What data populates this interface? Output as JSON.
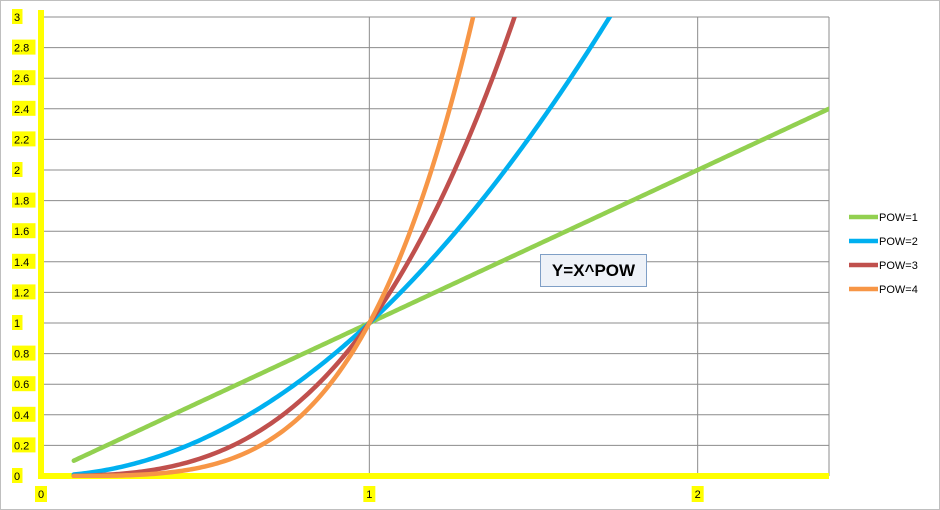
{
  "chart_data": {
    "type": "line",
    "title": "",
    "xlabel": "",
    "ylabel": "",
    "xlim": [
      0,
      2.4
    ],
    "ylim": [
      0,
      3
    ],
    "x_ticks": [
      "0",
      "1",
      "2"
    ],
    "y_ticks": [
      "0",
      "0.2",
      "0.4",
      "0.6",
      "0.8",
      "1",
      "1.2",
      "1.4",
      "1.6",
      "1.8",
      "2",
      "2.2",
      "2.4",
      "2.6",
      "2.8",
      "3"
    ],
    "x_start": 0.1,
    "x_end": 2.4,
    "grid": true,
    "legend_position": "right",
    "annotation": "Y=X^POW",
    "axis_highlight_color": "#ffff00",
    "series": [
      {
        "name": "POW=1",
        "power": 1,
        "color": "#92d050"
      },
      {
        "name": "POW=2",
        "power": 2,
        "color": "#00b0f0"
      },
      {
        "name": "POW=3",
        "power": 3,
        "color": "#c0504d"
      },
      {
        "name": "POW=4",
        "power": 4,
        "color": "#f79646"
      }
    ]
  }
}
